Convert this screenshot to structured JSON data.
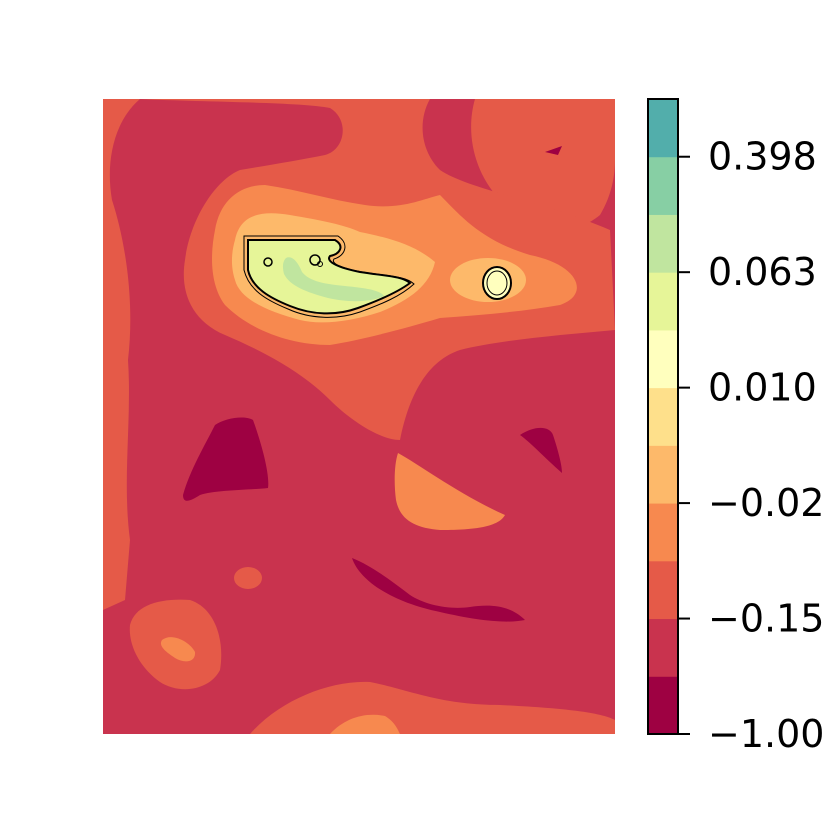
{
  "chart_data": {
    "type": "heatmap",
    "subtype": "filled-contour",
    "title": "",
    "xlabel": "",
    "ylabel": "",
    "axes_visible": false,
    "grid": false,
    "colormap": "Spectral",
    "colorbar": {
      "position": "right",
      "levels": [
        -1.0,
        -0.35,
        -0.15,
        -0.08,
        -0.02,
        -0.005,
        0.01,
        0.03,
        0.063,
        0.15,
        0.398,
        1.0
      ],
      "tick_values": [
        -1.0,
        -0.15,
        -0.02,
        0.01,
        0.063,
        0.398
      ],
      "tick_labels": [
        "−1.00",
        "−0.15",
        "−0.02",
        "0.010",
        "0.063",
        "0.398"
      ],
      "band_colors": [
        "#9e0142",
        "#c9334e",
        "#e55a48",
        "#f7894f",
        "#fdb96a",
        "#fee08b",
        "#ffffbe",
        "#e6f598",
        "#c0e59f",
        "#87cfa4",
        "#52aeab"
      ]
    },
    "regions": [
      {
        "name": "west-margin",
        "band": 2
      },
      {
        "name": "northeast-corner",
        "band": 2
      },
      {
        "name": "central-ridge",
        "band": 2
      },
      {
        "name": "central-ridge-high",
        "band": 3
      },
      {
        "name": "central-ridge-peak",
        "band": 4
      },
      {
        "name": "ridge-summit",
        "band": 7
      },
      {
        "name": "ridge-summit-core",
        "band": 8
      },
      {
        "name": "east-knob",
        "band": 6
      },
      {
        "name": "center-right-lobe",
        "band": 3
      },
      {
        "name": "southwest-mound",
        "band": 2
      },
      {
        "name": "southwest-mound-top",
        "band": 3
      },
      {
        "name": "south-ridge",
        "band": 2
      },
      {
        "name": "western-trough",
        "band": 0
      },
      {
        "name": "southern-trough",
        "band": 0
      },
      {
        "name": "eastern-trough",
        "band": 0
      },
      {
        "name": "northeast-pit",
        "band": 0
      }
    ]
  }
}
